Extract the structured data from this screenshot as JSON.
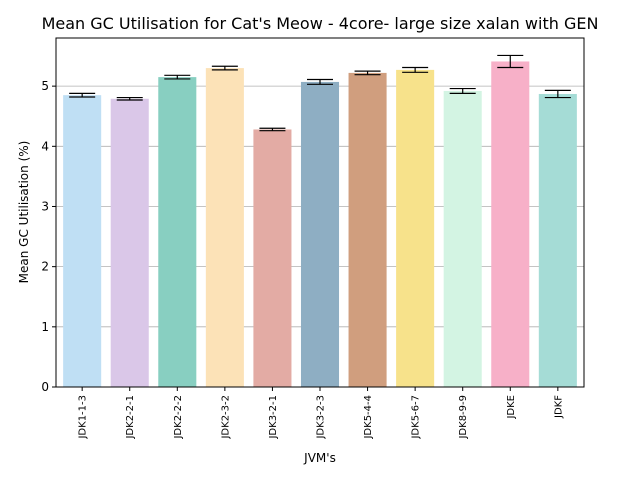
{
  "chart_data": {
    "type": "bar",
    "title": "Mean GC Utilisation for Cat's Meow - 4core- large size xalan with GEN",
    "xlabel": "JVM's",
    "ylabel": "Mean GC Utilisation (%)",
    "ylim": [
      0,
      5.8
    ],
    "yticks": [
      0,
      1,
      2,
      3,
      4,
      5
    ],
    "grid": "horizontal",
    "categories": [
      "JDK1-1-3",
      "JDK2-2-1",
      "JDK2-2-2",
      "JDK2-3-2",
      "JDK3-2-1",
      "JDK3-2-3",
      "JDK5-4-4",
      "JDK5-6-7",
      "JDK8-9-9",
      "JDKE",
      "JDKF"
    ],
    "values": [
      4.85,
      4.79,
      5.15,
      5.3,
      4.28,
      5.07,
      5.22,
      5.27,
      4.92,
      5.41,
      4.87
    ],
    "errors": [
      0.03,
      0.02,
      0.03,
      0.03,
      0.02,
      0.04,
      0.03,
      0.04,
      0.04,
      0.1,
      0.06
    ],
    "colors": [
      "#bfdff4",
      "#dac7e8",
      "#88cfc1",
      "#fce2b7",
      "#e3aba4",
      "#8eaec3",
      "#d09e7e",
      "#f7e28b",
      "#d3f4e3",
      "#f7b0c8",
      "#a5dcd6"
    ]
  }
}
